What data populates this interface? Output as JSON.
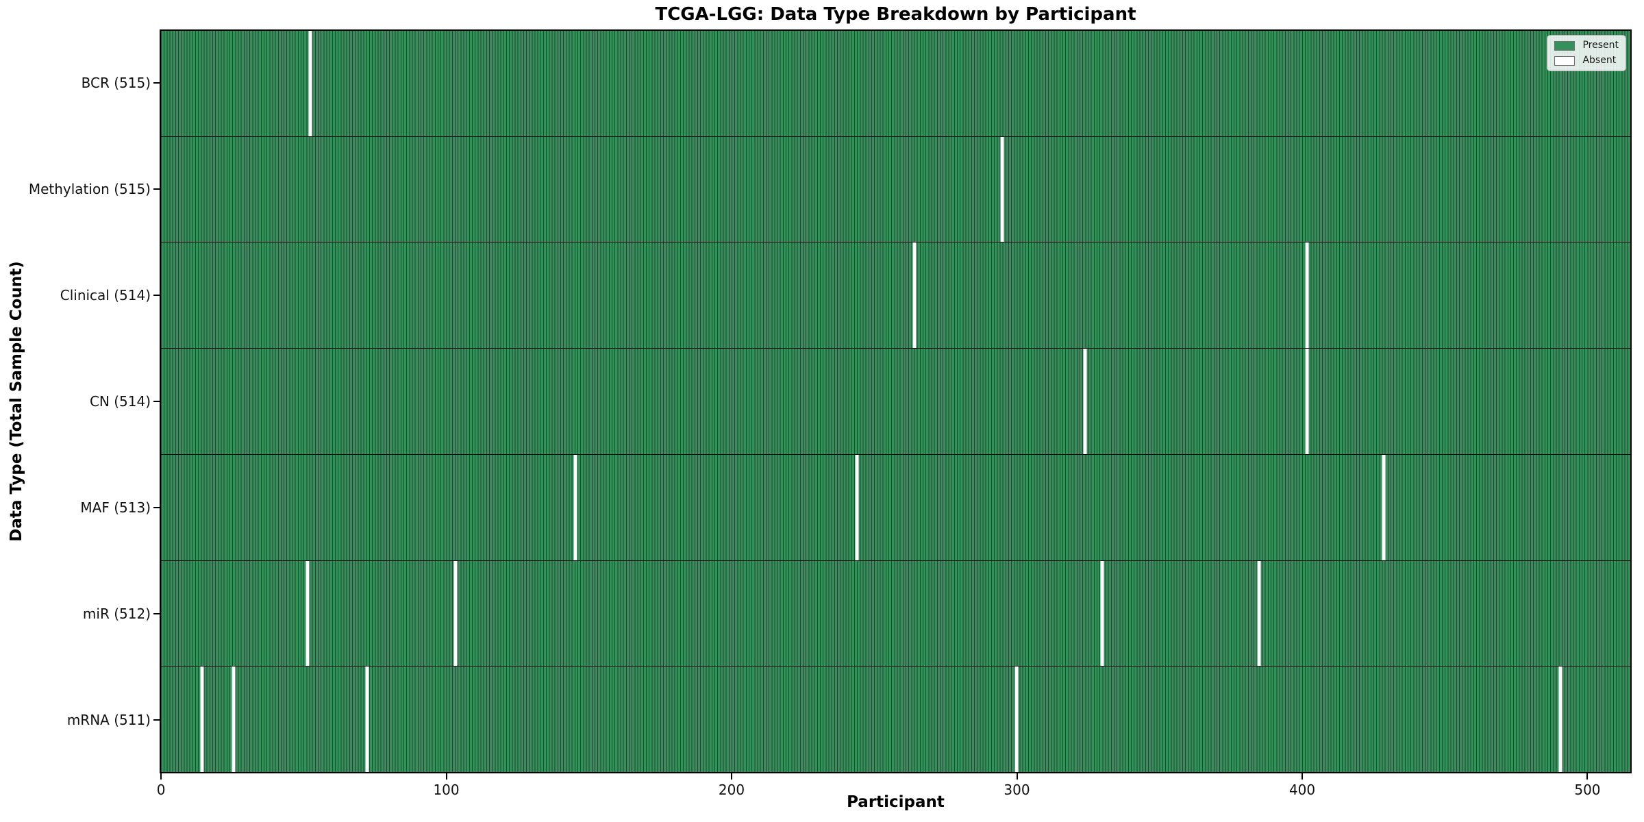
{
  "chart_data": {
    "type": "heatmap",
    "title": "TCGA-LGG: Data Type Breakdown by Participant",
    "xlabel": "Participant",
    "ylabel": "Data Type (Total Sample Count)",
    "x_ticks": [
      0,
      100,
      200,
      300,
      400,
      500
    ],
    "x_range": [
      -0.5,
      515.5
    ],
    "n_participants": 516,
    "grid": false,
    "legend_position": "upper-right",
    "colors": {
      "present": "#35905c",
      "cell_edge": "#1e4630",
      "absent": "#ffffff",
      "row_divider": "#0d0d0d",
      "figure_bg": "#ffffff"
    },
    "legend": [
      {
        "label": "Present",
        "color": "#35905c"
      },
      {
        "label": "Absent",
        "color": "#ffffff"
      }
    ],
    "rows": [
      {
        "label": "BCR (515)",
        "present_count": 515,
        "absent_participants": [
          52
        ]
      },
      {
        "label": "Methylation (515)",
        "present_count": 515,
        "absent_participants": [
          295
        ]
      },
      {
        "label": "Clinical (514)",
        "present_count": 514,
        "absent_participants": [
          264,
          402
        ]
      },
      {
        "label": "CN (514)",
        "present_count": 514,
        "absent_participants": [
          324,
          402
        ]
      },
      {
        "label": "MAF (513)",
        "present_count": 513,
        "absent_participants": [
          145,
          244,
          429
        ]
      },
      {
        "label": "miR (512)",
        "present_count": 512,
        "absent_participants": [
          51,
          103,
          330,
          385
        ]
      },
      {
        "label": "mRNA (511)",
        "present_count": 511,
        "absent_participants": [
          14,
          25,
          72,
          300,
          491
        ]
      }
    ]
  }
}
